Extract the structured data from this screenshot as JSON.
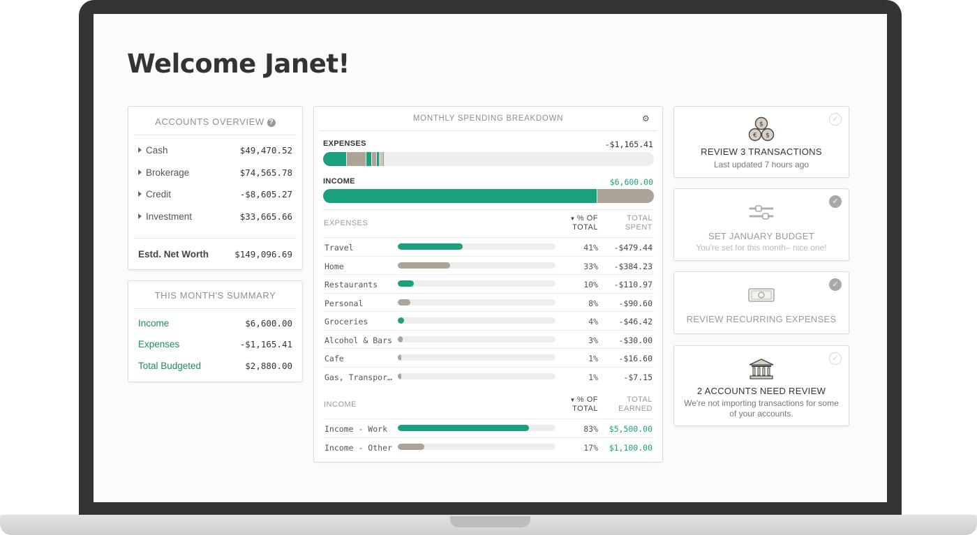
{
  "welcome": "Welcome Janet!",
  "accounts": {
    "title": "ACCOUNTS OVERVIEW",
    "help_glyph": "?",
    "items": [
      {
        "label": "Cash",
        "value": "$49,470.52"
      },
      {
        "label": "Brokerage",
        "value": "$74,565.78"
      },
      {
        "label": "Credit",
        "value": "-$8,605.27"
      },
      {
        "label": "Investment",
        "value": "$33,665.66"
      }
    ],
    "net_label": "Estd. Net Worth",
    "net_value": "$149,096.69"
  },
  "summary": {
    "title": "THIS MONTH'S SUMMARY",
    "items": [
      {
        "label": "Income",
        "value": "$6,600.00"
      },
      {
        "label": "Expenses",
        "value": "-$1,165.41"
      },
      {
        "label": "Total Budgeted",
        "value": "$2,880.00"
      }
    ]
  },
  "spending": {
    "title": "MONTHLY SPENDING BREAKDOWN",
    "expenses_label": "EXPENSES",
    "expenses_total": "-$1,165.41",
    "income_label": "INCOME",
    "income_total": "$6,600.00",
    "expenses_section": "EXPENSES",
    "pct_header": [
      "% OF",
      "TOTAL"
    ],
    "spent_header": [
      "TOTAL",
      "SPENT"
    ],
    "expense_rows": [
      {
        "name": "Travel",
        "pct": "41%",
        "amount": "-$479.44",
        "share": 0.41,
        "color": "#1aa07c"
      },
      {
        "name": "Home",
        "pct": "33%",
        "amount": "-$384.23",
        "share": 0.33,
        "color": "#aca497"
      },
      {
        "name": "Restaurants",
        "pct": "10%",
        "amount": "-$110.97",
        "share": 0.1,
        "color": "#1aa07c"
      },
      {
        "name": "Personal",
        "pct": "8%",
        "amount": "-$90.60",
        "share": 0.08,
        "color": "#aca497"
      },
      {
        "name": "Groceries",
        "pct": "4%",
        "amount": "-$46.42",
        "share": 0.04,
        "color": "#1aa07c"
      },
      {
        "name": "Alcohol & Bars",
        "pct": "3%",
        "amount": "-$30.00",
        "share": 0.03,
        "color": "#aca497"
      },
      {
        "name": "Cafe",
        "pct": "1%",
        "amount": "-$16.60",
        "share": 0.01,
        "color": "#aca497"
      },
      {
        "name": "Gas, Transpor…",
        "pct": "1%",
        "amount": "-$7.15",
        "share": 0.01,
        "color": "#aca497"
      }
    ],
    "income_section": "INCOME",
    "earned_header": [
      "TOTAL",
      "EARNED"
    ],
    "income_rows": [
      {
        "name": "Income - Work",
        "pct": "83%",
        "amount": "$5,500.00",
        "share": 0.83,
        "color": "#1aa07c"
      },
      {
        "name": "Income - Other",
        "pct": "17%",
        "amount": "$1,100.00",
        "share": 0.17,
        "color": "#aca497"
      }
    ],
    "expense_bar_share_of_income": 0.177
  },
  "tasks": [
    {
      "title": "REVIEW 3 TRANSACTIONS",
      "subtitle": "Last updated 7 hours ago",
      "done": false,
      "icon": "coins-icon"
    },
    {
      "title": "SET JANUARY BUDGET",
      "subtitle": "You're set for this month– nice one!",
      "done": true,
      "icon": "sliders-icon"
    },
    {
      "title": "REVIEW RECURRING EXPENSES",
      "subtitle": "",
      "done": true,
      "icon": "banknote-icon"
    },
    {
      "title": "2 ACCOUNTS NEED REVIEW",
      "subtitle": "We're not importing transactions for some of your accounts.",
      "done": false,
      "icon": "bank-icon"
    }
  ],
  "colors": {
    "teal": "#1aa07c",
    "taupe": "#aca497",
    "summary_green": "#1f8a63",
    "track": "#ededed"
  }
}
